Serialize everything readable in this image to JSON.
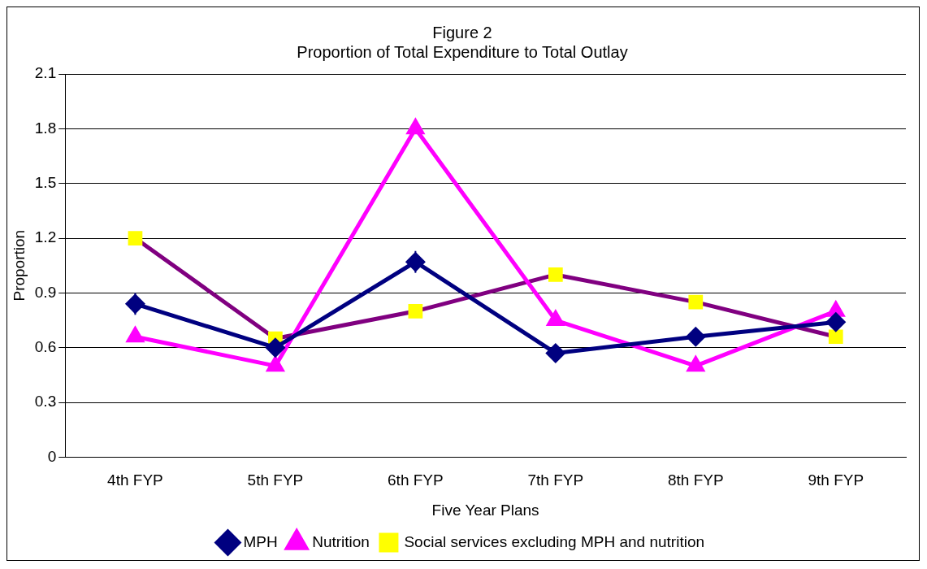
{
  "chart_data": {
    "type": "line",
    "title": "Figure 2",
    "subtitle": "Proportion of Total Expenditure to Total Outlay",
    "xlabel": "Five Year Plans",
    "ylabel": "Proportion",
    "categories": [
      "4th FYP",
      "5th FYP",
      "6th FYP",
      "7th FYP",
      "8th FYP",
      "9th FYP"
    ],
    "series": [
      {
        "name": "MPH",
        "color": "#000080",
        "marker": "diamond",
        "values": [
          0.84,
          0.6,
          1.07,
          0.57,
          0.66,
          0.74
        ],
        "errors": [
          0.06,
          null,
          0.06,
          null,
          null,
          null
        ]
      },
      {
        "name": "Nutrition",
        "color": "#ff00ff",
        "marker": "triangle",
        "values": [
          0.66,
          0.5,
          1.8,
          0.75,
          0.5,
          0.8
        ]
      },
      {
        "name": "Social services excluding MPH and nutrition",
        "color": "#800080",
        "marker": "square",
        "colors": [
          "#ffff00",
          "#ffff00",
          "#ffff00",
          "#ffff00",
          "#ffff00",
          "#ffff00"
        ],
        "values": [
          1.2,
          0.65,
          0.8,
          1.0,
          0.85,
          0.66
        ]
      }
    ],
    "ylim": [
      0,
      2.1
    ],
    "yticks": [
      0,
      0.3,
      0.6,
      0.9,
      1.2,
      1.5,
      1.8,
      2.1
    ],
    "grid": "y",
    "legend": "bottom",
    "line_style": "solid"
  }
}
